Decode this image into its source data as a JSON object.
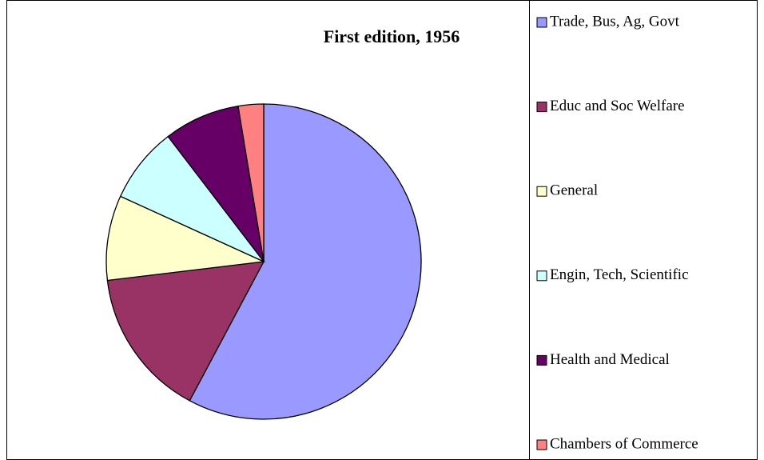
{
  "chart_data": {
    "type": "pie",
    "title": "First edition, 1956",
    "categories": [
      "Trade, Bus, Ag, Govt",
      "Educ and Soc Welfare",
      "General",
      "Engin, Tech, Scientific",
      "Health and Medical",
      "Chambers of Commerce"
    ],
    "values": [
      57.8,
      15.3,
      8.7,
      7.8,
      7.8,
      2.6
    ],
    "colors": [
      "#9999ff",
      "#993366",
      "#ffffcc",
      "#ccffff",
      "#660066",
      "#ff8080"
    ],
    "legend": "right"
  }
}
